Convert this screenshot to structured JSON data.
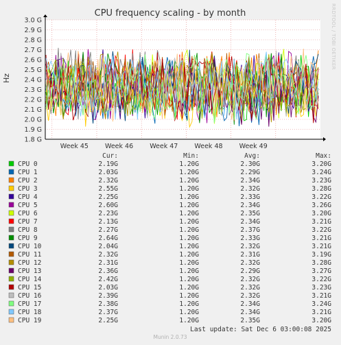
{
  "chart_data": {
    "type": "line",
    "title": "CPU frequency scaling - by month",
    "ylabel": "Hz",
    "ylim": [
      1.8,
      3.0
    ],
    "y_ticks": [
      {
        "value": 1.8,
        "label": "1.8 G"
      },
      {
        "value": 1.9,
        "label": "1.9 G"
      },
      {
        "value": 2.0,
        "label": "2.0 G"
      },
      {
        "value": 2.1,
        "label": "2.1 G"
      },
      {
        "value": 2.2,
        "label": "2.2 G"
      },
      {
        "value": 2.3,
        "label": "2.3 G"
      },
      {
        "value": 2.4,
        "label": "2.4 G"
      },
      {
        "value": 2.5,
        "label": "2.5 G"
      },
      {
        "value": 2.6,
        "label": "2.6 G"
      },
      {
        "value": 2.7,
        "label": "2.7 G"
      },
      {
        "value": 2.8,
        "label": "2.8 G"
      },
      {
        "value": 2.9,
        "label": "2.9 G"
      },
      {
        "value": 3.0,
        "label": "3.0 G"
      }
    ],
    "x_ticks": [
      "Week 45",
      "Week 46",
      "Week 47",
      "Week 48",
      "Week 49"
    ],
    "grid": true,
    "legend_columns": [
      "Cur:",
      "Min:",
      "Avg:",
      "Max:"
    ],
    "series": [
      {
        "name": "CPU 0",
        "color": "#00cc00",
        "cur": "2.19G",
        "min": "1.20G",
        "avg": "2.30G",
        "max": "3.20G"
      },
      {
        "name": "CPU 1",
        "color": "#0066b3",
        "cur": "2.03G",
        "min": "1.20G",
        "avg": "2.29G",
        "max": "3.24G"
      },
      {
        "name": "CPU 2",
        "color": "#ff8000",
        "cur": "2.32G",
        "min": "1.20G",
        "avg": "2.34G",
        "max": "3.23G"
      },
      {
        "name": "CPU 3",
        "color": "#ffcc00",
        "cur": "2.55G",
        "min": "1.20G",
        "avg": "2.32G",
        "max": "3.28G"
      },
      {
        "name": "CPU 4",
        "color": "#330099",
        "cur": "2.25G",
        "min": "1.20G",
        "avg": "2.33G",
        "max": "3.22G"
      },
      {
        "name": "CPU 5",
        "color": "#990099",
        "cur": "2.60G",
        "min": "1.20G",
        "avg": "2.34G",
        "max": "3.26G"
      },
      {
        "name": "CPU 6",
        "color": "#ccff00",
        "cur": "2.23G",
        "min": "1.20G",
        "avg": "2.35G",
        "max": "3.20G"
      },
      {
        "name": "CPU 7",
        "color": "#ff0000",
        "cur": "2.13G",
        "min": "1.20G",
        "avg": "2.34G",
        "max": "3.21G"
      },
      {
        "name": "CPU 8",
        "color": "#808080",
        "cur": "2.27G",
        "min": "1.20G",
        "avg": "2.37G",
        "max": "3.22G"
      },
      {
        "name": "CPU 9",
        "color": "#008f00",
        "cur": "2.64G",
        "min": "1.20G",
        "avg": "2.33G",
        "max": "3.21G"
      },
      {
        "name": "CPU 10",
        "color": "#00487d",
        "cur": "2.04G",
        "min": "1.20G",
        "avg": "2.32G",
        "max": "3.21G"
      },
      {
        "name": "CPU 11",
        "color": "#b35a00",
        "cur": "2.32G",
        "min": "1.20G",
        "avg": "2.31G",
        "max": "3.19G"
      },
      {
        "name": "CPU 12",
        "color": "#b38f00",
        "cur": "2.31G",
        "min": "1.20G",
        "avg": "2.32G",
        "max": "3.28G"
      },
      {
        "name": "CPU 13",
        "color": "#6b006b",
        "cur": "2.36G",
        "min": "1.20G",
        "avg": "2.29G",
        "max": "3.27G"
      },
      {
        "name": "CPU 14",
        "color": "#8fb300",
        "cur": "2.42G",
        "min": "1.20G",
        "avg": "2.32G",
        "max": "3.22G"
      },
      {
        "name": "CPU 15",
        "color": "#b30000",
        "cur": "2.03G",
        "min": "1.20G",
        "avg": "2.32G",
        "max": "3.23G"
      },
      {
        "name": "CPU 16",
        "color": "#bebebe",
        "cur": "2.39G",
        "min": "1.20G",
        "avg": "2.32G",
        "max": "3.21G"
      },
      {
        "name": "CPU 17",
        "color": "#80ff80",
        "cur": "2.38G",
        "min": "1.20G",
        "avg": "2.34G",
        "max": "3.24G"
      },
      {
        "name": "CPU 18",
        "color": "#80c9ff",
        "cur": "2.37G",
        "min": "1.20G",
        "avg": "2.34G",
        "max": "3.21G"
      },
      {
        "name": "CPU 19",
        "color": "#ffc080",
        "cur": "2.25G",
        "min": "1.20G",
        "avg": "2.35G",
        "max": "3.20G"
      }
    ]
  },
  "last_update": "Last update: Sat Dec  6 03:00:08 2025",
  "side_label": "RRDTOOL / TOBI OETIKER",
  "footer": "Munin 2.0.73"
}
